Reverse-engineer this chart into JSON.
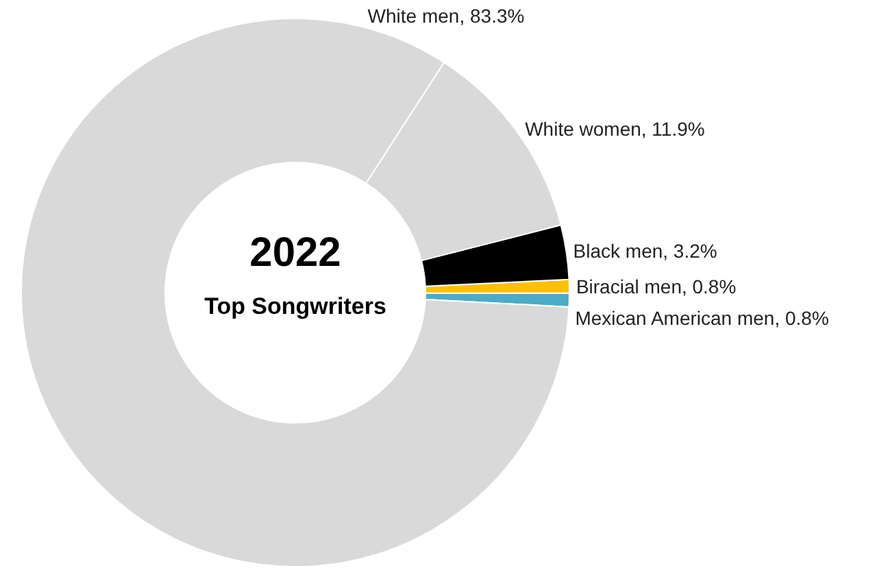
{
  "chart_data": {
    "type": "donut",
    "title": "2022",
    "subtitle": "Top Songwriters",
    "categories": [
      "Mexican American men",
      "Biracial men",
      "Black men",
      "White women",
      "White men"
    ],
    "values": [
      0.8,
      0.8,
      3.2,
      11.9,
      83.3
    ],
    "colors": [
      "#4bacc6",
      "#ffc000",
      "#000000",
      "#d9d9d9",
      "#d9d9d9"
    ],
    "value_labels": [
      "0.8%",
      "0.8%",
      "3.2%",
      "11.9%",
      "83.3%"
    ]
  }
}
